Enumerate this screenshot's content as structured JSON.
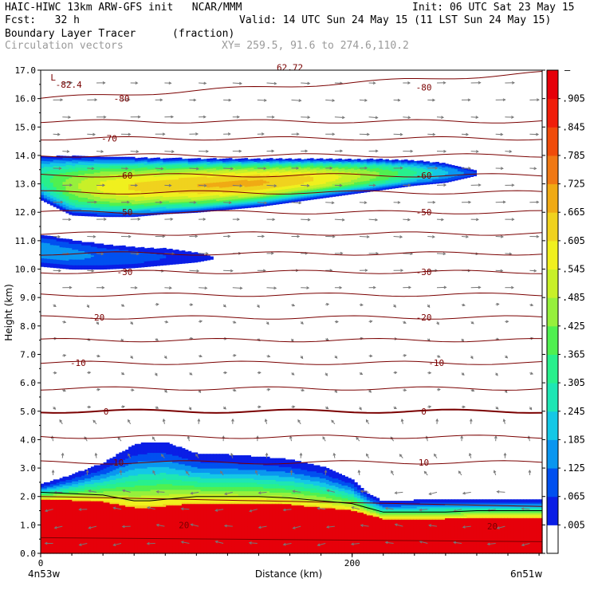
{
  "header": {
    "line1_left": "HAIC-HIWC 13km ARW-GFS init   NCAR/MMM",
    "line1_right": "Init: 06 UTC Sat 23 May 15",
    "line2_left": "Fcst:   32 h",
    "line2_right": "Valid: 14 UTC Sun 24 May 15 (11 LST Sun 24 May 15)",
    "line3_left": "Boundary Layer Tracer",
    "line3_units": "(fraction)",
    "line4_left": "Circulation vectors",
    "line4_xy": "XY= 259.5, 91.6 to 274.6,110.2"
  },
  "chart_data": {
    "type": "heatmap",
    "title": "Boundary Layer Tracer (fraction)",
    "xlabel": "Distance (km)",
    "ylabel": "Height (km)",
    "xlim": [
      0,
      322
    ],
    "ylim": [
      0,
      17
    ],
    "x_ticks": [
      0,
      200
    ],
    "y_ticks": [
      "0.0",
      "1.0",
      "2.0",
      "3.0",
      "4.0",
      "5.0",
      "6.0",
      "7.0",
      "8.0",
      "9.0",
      "10.0",
      "11.0",
      "12.0",
      "13.0",
      "14.0",
      "15.0",
      "16.0",
      "17.0"
    ],
    "x_endpoints": {
      "left": "4n53w",
      "right": "6n51w"
    },
    "colorbar": {
      "levels": [
        ".005",
        ".065",
        ".125",
        ".185",
        ".245",
        ".305",
        ".365",
        ".425",
        ".485",
        ".545",
        ".605",
        ".665",
        ".725",
        ".785",
        ".845",
        ".905"
      ],
      "top_label": "–",
      "colors": [
        "#ffffff",
        "#0a1ee6",
        "#0050f0",
        "#0a96f0",
        "#14c8e6",
        "#1ee6b4",
        "#28f08c",
        "#50f050",
        "#96f03c",
        "#c8f028",
        "#f0f01e",
        "#f0d21e",
        "#f0aa14",
        "#f07814",
        "#f04b0a",
        "#f01e0a",
        "#e6000a"
      ]
    },
    "contour_labels": [
      {
        "x": 18,
        "y": 16.5,
        "text": "-82.4"
      },
      {
        "x": 52,
        "y": 16.0,
        "text": "-80"
      },
      {
        "x": 246,
        "y": 16.4,
        "text": "-80"
      },
      {
        "x": 44,
        "y": 14.6,
        "text": "-70"
      },
      {
        "x": 54,
        "y": 13.3,
        "text": "-60"
      },
      {
        "x": 246,
        "y": 13.3,
        "text": "-60"
      },
      {
        "x": 54,
        "y": 12.0,
        "text": "-50"
      },
      {
        "x": 246,
        "y": 12.0,
        "text": "-50"
      },
      {
        "x": 54,
        "y": 9.9,
        "text": "-30"
      },
      {
        "x": 246,
        "y": 9.9,
        "text": "-30"
      },
      {
        "x": 36,
        "y": 8.3,
        "text": "-20"
      },
      {
        "x": 246,
        "y": 8.3,
        "text": "-20"
      },
      {
        "x": 24,
        "y": 6.7,
        "text": "-10"
      },
      {
        "x": 254,
        "y": 6.7,
        "text": "-10"
      },
      {
        "x": 42,
        "y": 5.0,
        "text": "0"
      },
      {
        "x": 246,
        "y": 5.0,
        "text": "0"
      },
      {
        "x": 50,
        "y": 3.2,
        "text": "10"
      },
      {
        "x": 246,
        "y": 3.2,
        "text": "10"
      },
      {
        "x": 92,
        "y": 1.0,
        "text": "20"
      },
      {
        "x": 290,
        "y": 0.95,
        "text": "20"
      }
    ],
    "max_label": {
      "x": 8,
      "y": 16.75,
      "text": "L"
    },
    "top_marker": {
      "x": 160,
      "y": 17.1,
      "text": "62.72"
    },
    "upper_plume": {
      "description": "upper tracer layer ~12-14 km",
      "xs": [
        0,
        20,
        40,
        60,
        80,
        100,
        120,
        140,
        160,
        180,
        200,
        220,
        240,
        260,
        280
      ],
      "top": [
        13.95,
        13.95,
        13.92,
        13.9,
        13.88,
        13.87,
        13.86,
        13.86,
        13.86,
        13.86,
        13.85,
        13.84,
        13.8,
        13.7,
        13.45
      ],
      "bot": [
        12.45,
        11.9,
        11.85,
        11.85,
        11.95,
        12.0,
        12.1,
        12.2,
        12.35,
        12.5,
        12.65,
        12.8,
        12.95,
        13.05,
        13.3
      ],
      "peak": [
        0.3,
        0.45,
        0.55,
        0.6,
        0.62,
        0.65,
        0.66,
        0.66,
        0.63,
        0.58,
        0.5,
        0.4,
        0.3,
        0.18,
        0.06
      ]
    },
    "mid_plume": {
      "description": "secondary layer ~10-11.2 km",
      "xs": [
        0,
        20,
        40,
        60,
        80,
        100,
        110
      ],
      "top": [
        11.2,
        11.0,
        10.85,
        10.75,
        10.7,
        10.55,
        10.4
      ],
      "bot": [
        10.1,
        10.0,
        10.0,
        10.05,
        10.15,
        10.25,
        10.35
      ],
      "peak": [
        0.15,
        0.13,
        0.1,
        0.08,
        0.05,
        0.02,
        0.0
      ]
    },
    "boundary_layer": {
      "description": "tracer top height (km) vs distance",
      "xs": [
        0,
        20,
        40,
        60,
        70,
        80,
        90,
        100,
        110,
        120,
        140,
        160,
        180,
        200,
        210,
        220,
        240,
        260,
        280,
        300,
        322
      ],
      "top": [
        2.4,
        2.75,
        3.15,
        3.8,
        3.9,
        3.88,
        3.7,
        3.5,
        3.45,
        3.45,
        3.38,
        3.28,
        3.05,
        2.6,
        2.1,
        1.8,
        1.85,
        1.9,
        1.9,
        1.9,
        1.9
      ],
      "full": [
        1.9,
        1.85,
        1.8,
        1.6,
        1.6,
        1.65,
        1.7,
        1.75,
        1.75,
        1.75,
        1.75,
        1.7,
        1.6,
        1.5,
        1.35,
        1.2,
        1.2,
        1.2,
        1.25,
        1.25,
        1.25
      ]
    },
    "isotherm_levels": [
      0.55,
      2.0,
      3.2,
      4.1,
      5.0,
      5.8,
      6.7,
      7.5,
      8.3,
      9.1,
      9.9,
      10.55,
      11.25,
      12.0,
      12.7,
      13.3,
      14.0,
      14.6,
      15.2,
      16.0
    ]
  }
}
